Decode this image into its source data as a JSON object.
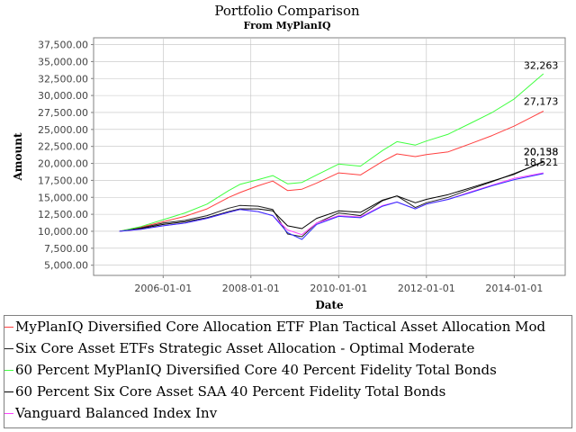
{
  "chart_data": {
    "type": "line",
    "title": "Portfolio Comparison",
    "subtitle": "From MyPlanIQ",
    "xlabel": "Date",
    "ylabel": "Amount",
    "x_ticks": [
      "2006-01-01",
      "2008-01-01",
      "2010-01-01",
      "2012-01-01",
      "2014-01-01"
    ],
    "y_ticks": [
      "5,000.00",
      "7,500.00",
      "10,000.00",
      "12,500.00",
      "15,000.00",
      "17,500.00",
      "20,000.00",
      "22,500.00",
      "25,000.00",
      "27,500.00",
      "30,000.00",
      "32,500.00",
      "35,000.00",
      "37,500.00"
    ],
    "xlim": [
      "2004-06-01",
      "2015-03-01"
    ],
    "ylim": [
      3500,
      38500
    ],
    "grid": true,
    "legend_position": "bottom",
    "x": [
      "2005-01-01",
      "2005-07-01",
      "2006-01-01",
      "2006-07-01",
      "2007-01-01",
      "2007-07-01",
      "2007-10-01",
      "2008-03-01",
      "2008-07-01",
      "2008-11-01",
      "2009-03-01",
      "2009-07-01",
      "2010-01-01",
      "2010-07-01",
      "2011-01-01",
      "2011-05-01",
      "2011-10-01",
      "2012-01-01",
      "2012-07-01",
      "2013-01-01",
      "2013-07-01",
      "2014-01-01",
      "2014-09-01"
    ],
    "series": [
      {
        "name": "MyPlanIQ Diversified Core Allocation ETF Plan Tactical Asset Allocation Mod",
        "color": "#ff4040",
        "values": [
          10000,
          10600,
          11400,
          12200,
          13300,
          15000,
          15700,
          16700,
          17400,
          16000,
          16200,
          17100,
          18600,
          18300,
          20300,
          21400,
          21000,
          21300,
          21700,
          22900,
          24100,
          25500,
          27700
        ]
      },
      {
        "name": "Six Core Asset ETFs Strategic Asset Allocation - Optimal Moderate",
        "color": "#202020",
        "values": [
          10000,
          10500,
          11200,
          11600,
          12300,
          13400,
          13800,
          13700,
          13200,
          9600,
          9200,
          11200,
          12700,
          12300,
          14500,
          15200,
          13500,
          14200,
          15000,
          16200,
          17300,
          18500,
          20200
        ]
      },
      {
        "name": "60 Percent MyPlanIQ Diversified Core 40 Percent Fidelity Total Bonds",
        "color": "#40ff40",
        "values": [
          10000,
          10700,
          11700,
          12700,
          14000,
          16000,
          16900,
          17600,
          18200,
          17000,
          17200,
          18300,
          19900,
          19600,
          21900,
          23200,
          22700,
          23300,
          24300,
          25900,
          27500,
          29500,
          33200
        ]
      },
      {
        "name": "60 Percent Six Core Asset SAA 40 Percent Fidelity Total Bonds",
        "color": "#000000",
        "values": [
          10000,
          10400,
          11000,
          11400,
          12000,
          12900,
          13300,
          13300,
          13000,
          10800,
          10400,
          11900,
          13000,
          12800,
          14600,
          15200,
          14200,
          14700,
          15400,
          16400,
          17400,
          18400,
          20300
        ]
      },
      {
        "name": "Vanguard Balanced Index Inv",
        "color": "#ff40ff",
        "values": [
          10000,
          10300,
          10800,
          11200,
          11900,
          12800,
          13200,
          12900,
          12300,
          10200,
          9500,
          11200,
          12300,
          12100,
          13800,
          14300,
          13300,
          14000,
          14700,
          15800,
          16800,
          17800,
          18600
        ]
      },
      {
        "name": "",
        "color": "#3232ff",
        "values": [
          10000,
          10300,
          10800,
          11200,
          11900,
          12800,
          13200,
          12900,
          12300,
          9800,
          8800,
          11000,
          12200,
          12000,
          13700,
          14300,
          13300,
          14000,
          14700,
          15700,
          16700,
          17600,
          18500
        ]
      }
    ],
    "end_labels": [
      "32,263",
      "27,173",
      "20,158",
      "20,138",
      "18,521"
    ]
  }
}
